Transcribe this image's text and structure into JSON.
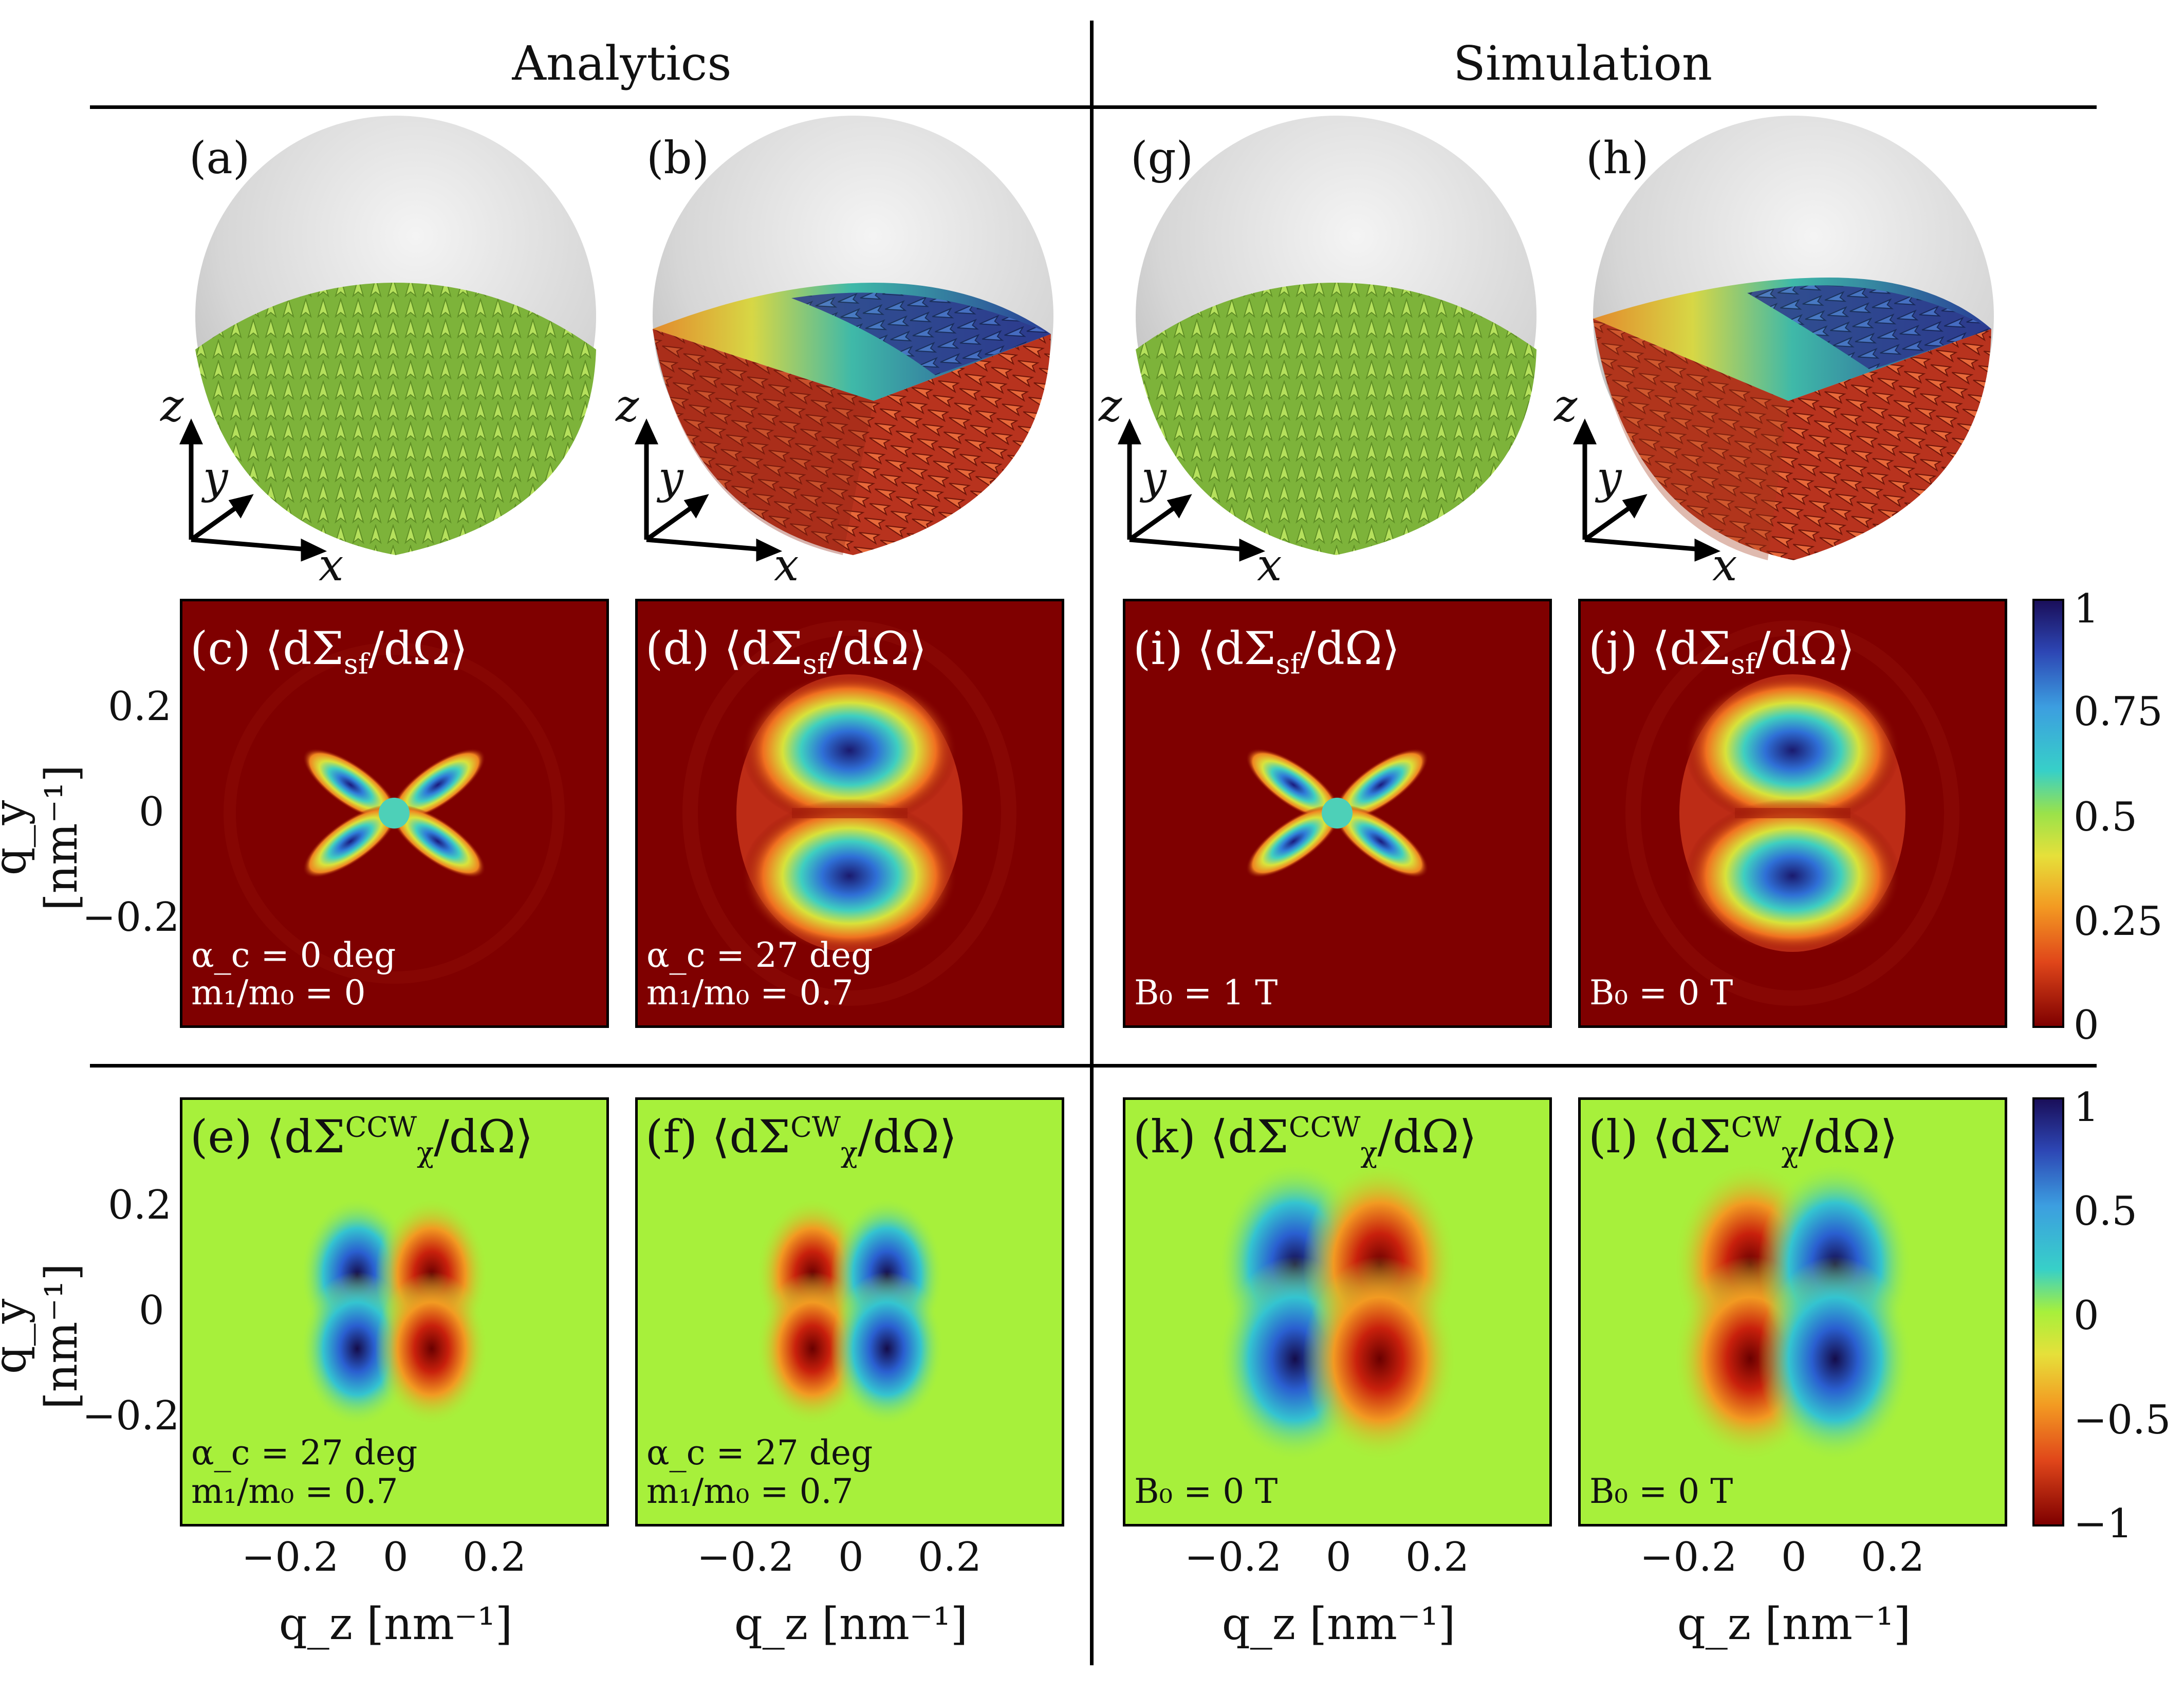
{
  "headers": {
    "left": "Analytics",
    "right": "Simulation"
  },
  "sphere_labels": [
    "(a)",
    "(b)",
    "(g)",
    "(h)"
  ],
  "axis_letters": {
    "x": "x",
    "y": "y",
    "z": "z"
  },
  "row2": {
    "panels": [
      {
        "label": "(c) ⟨dΣ",
        "sub": "sf",
        "tail": "/dΩ⟩",
        "param1": "α_c = 0 deg",
        "param2": "m₁/m₀ = 0"
      },
      {
        "label": "(d) ⟨dΣ",
        "sub": "sf",
        "tail": "/dΩ⟩",
        "param1": "α_c = 27 deg",
        "param2": "m₁/m₀ = 0.7"
      },
      {
        "label": "(i) ⟨dΣ",
        "sub": "sf",
        "tail": "/dΩ⟩",
        "param1": "B₀ = 1 T",
        "param2": ""
      },
      {
        "label": "(j) ⟨dΣ",
        "sub": "sf",
        "tail": "/dΩ⟩",
        "param1": "B₀ = 0 T",
        "param2": ""
      }
    ],
    "colorbar_ticks": [
      "1",
      "0.75",
      "0.5",
      "0.25",
      "0"
    ]
  },
  "row3": {
    "panels": [
      {
        "label": "(e) ⟨dΣ",
        "sup": "CCW",
        "sub": "χ",
        "tail": "/dΩ⟩",
        "param1": "α_c = 27 deg",
        "param2": "m₁/m₀ = 0.7"
      },
      {
        "label": "(f) ⟨dΣ",
        "sup": "CW",
        "sub": "χ",
        "tail": "/dΩ⟩",
        "param1": "α_c = 27 deg",
        "param2": "m₁/m₀ = 0.7"
      },
      {
        "label": "(k) ⟨dΣ",
        "sup": "CCW",
        "sub": "χ",
        "tail": "/dΩ⟩",
        "param1": "B₀ = 0 T",
        "param2": ""
      },
      {
        "label": "(l) ⟨dΣ",
        "sup": "CW",
        "sub": "χ",
        "tail": "/dΩ⟩",
        "param1": "B₀ = 0 T",
        "param2": ""
      }
    ],
    "colorbar_ticks": [
      "1",
      "0.5",
      "0",
      "−0.5",
      "−1"
    ]
  },
  "y_axis": {
    "label": "q_y [nm⁻¹]",
    "ticks": [
      "0.2",
      "0",
      "−0.2"
    ]
  },
  "x_axis": {
    "label": "q_z [nm⁻¹]",
    "ticks": [
      "−0.2",
      "0",
      "0.2"
    ]
  },
  "colors": {
    "dark_red": "#7f0000",
    "green_bg": "#a7f03b",
    "arrow_green": "#8cc63f",
    "sphere": "#d8d8d8"
  }
}
